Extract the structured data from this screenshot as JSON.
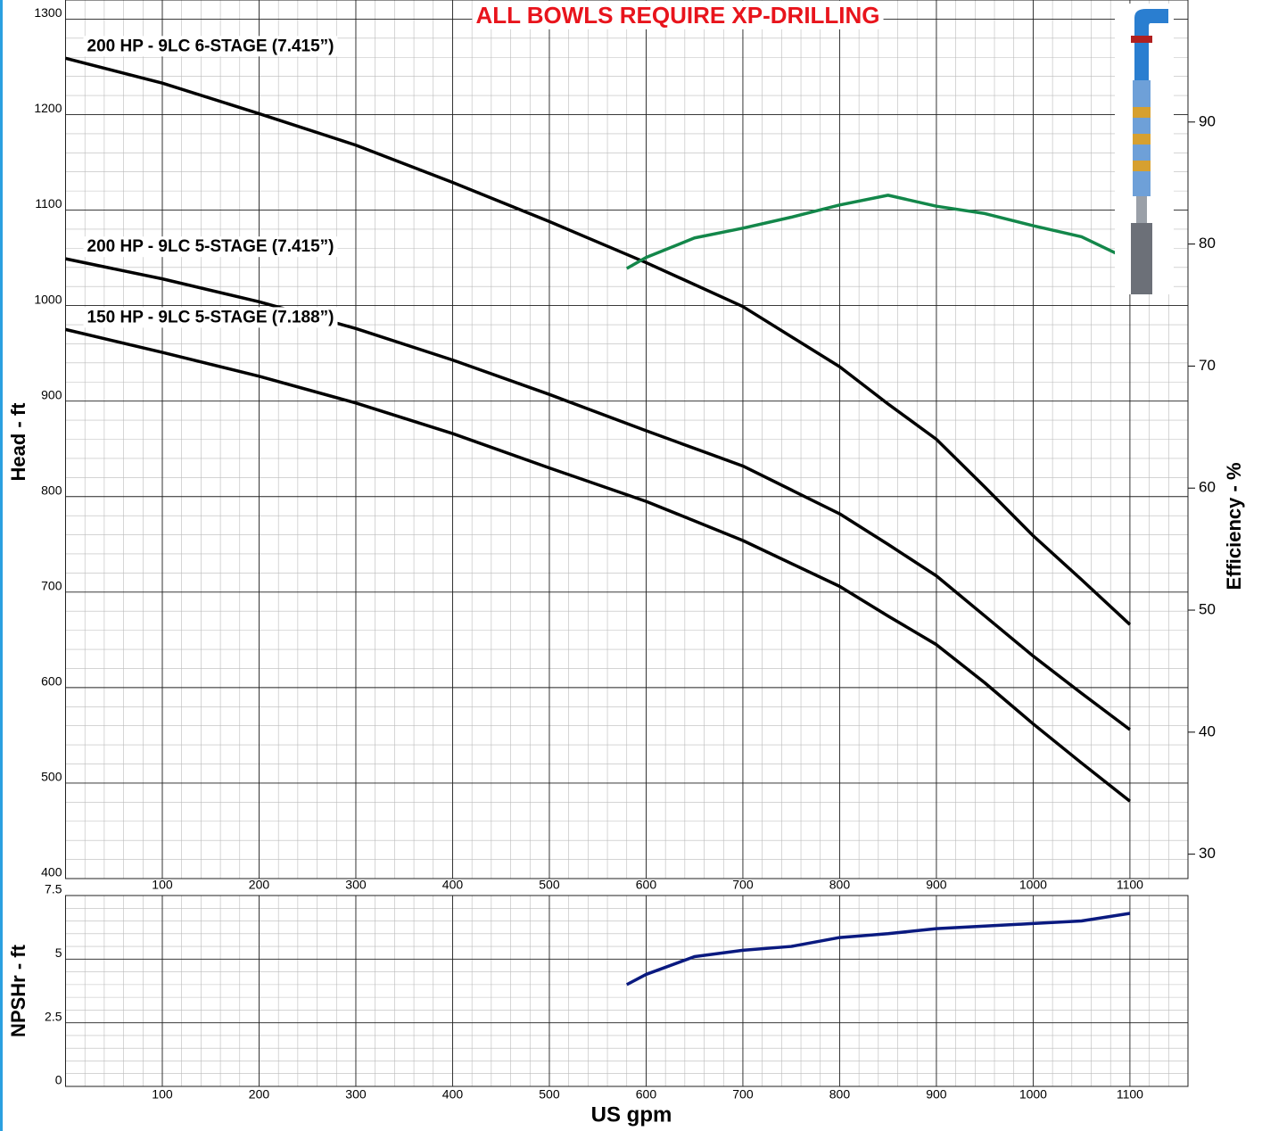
{
  "chart_data": [
    {
      "type": "line",
      "title": "ALL BOWLS REQUIRE XP-DRILLING",
      "y_label": "Head - ft",
      "y2_label": "Efficiency - %",
      "xlim": [
        0,
        1160
      ],
      "xticks": [
        100,
        200,
        300,
        400,
        500,
        600,
        700,
        800,
        900,
        1000,
        1100
      ],
      "ylim": [
        400,
        1320
      ],
      "yticks": [
        400,
        500,
        600,
        700,
        800,
        900,
        1000,
        1100,
        1200,
        1300
      ],
      "y2lim": [
        28,
        100
      ],
      "y2ticks": [
        30,
        40,
        50,
        60,
        70,
        80,
        90
      ],
      "grid": true,
      "minor_grid_divisions": 5,
      "series": [
        {
          "name": "200 HP - 9LC 6-STAGE (7.415”)",
          "color": "#000000",
          "x": [
            0,
            100,
            200,
            300,
            400,
            500,
            600,
            700,
            800,
            850,
            900,
            950,
            1000,
            1050,
            1100
          ],
          "values": [
            1259,
            1233,
            1201,
            1168,
            1129,
            1088,
            1045,
            999,
            936,
            897,
            860,
            810,
            759,
            713,
            666
          ]
        },
        {
          "name": "200 HP - 9LC 5-STAGE (7.415”)",
          "color": "#000000",
          "x": [
            0,
            100,
            200,
            300,
            400,
            500,
            600,
            700,
            800,
            850,
            900,
            950,
            1000,
            1050,
            1100
          ],
          "values": [
            1049,
            1028,
            1004,
            976,
            943,
            907,
            869,
            832,
            782,
            750,
            717,
            675,
            633,
            594,
            556
          ]
        },
        {
          "name": "150 HP - 9LC 5-STAGE (7.188”)",
          "color": "#000000",
          "x": [
            0,
            100,
            200,
            300,
            400,
            500,
            600,
            700,
            800,
            850,
            900,
            950,
            1000,
            1050,
            1100
          ],
          "values": [
            975,
            951,
            926,
            898,
            866,
            830,
            795,
            754,
            706,
            675,
            645,
            605,
            562,
            521,
            481
          ]
        },
        {
          "color": "#13874a",
          "axis": "y2",
          "x": [
            580,
            600,
            650,
            700,
            750,
            800,
            850,
            900,
            950,
            1000,
            1050,
            1100
          ],
          "values": [
            78.0,
            78.9,
            80.5,
            81.3,
            82.2,
            83.2,
            84.0,
            83.1,
            82.5,
            81.5,
            80.6,
            78.7
          ]
        }
      ]
    },
    {
      "type": "line",
      "x_label": "US gpm",
      "y_label": "NPSHr - ft",
      "xlim": [
        0,
        1160
      ],
      "xticks": [
        100,
        200,
        300,
        400,
        500,
        600,
        700,
        800,
        900,
        1000,
        1100
      ],
      "ylim": [
        0,
        7.5
      ],
      "yticks": [
        0,
        2.5,
        5,
        7.5
      ],
      "grid": true,
      "minor_grid_divisions": 5,
      "series": [
        {
          "color": "#0a1a80",
          "x": [
            580,
            600,
            650,
            700,
            750,
            800,
            850,
            900,
            950,
            1000,
            1050,
            1100
          ],
          "values": [
            4.0,
            4.4,
            5.1,
            5.35,
            5.5,
            5.85,
            6.0,
            6.2,
            6.3,
            6.4,
            6.5,
            6.8
          ]
        }
      ]
    }
  ]
}
